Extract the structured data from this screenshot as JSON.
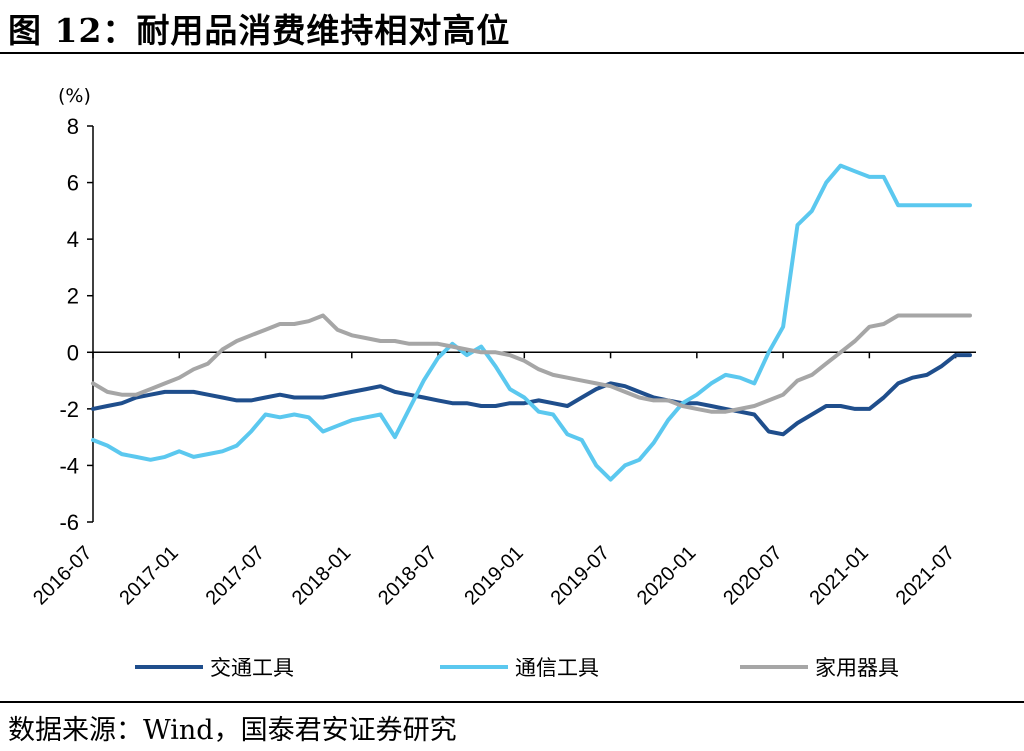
{
  "figure": {
    "title": "图 12：耐用品消费维持相对高位",
    "source": "数据来源：Wind，国泰君安证券研究"
  },
  "chart_data": {
    "type": "line",
    "title": "",
    "ylabel": "(%)",
    "xlabel": "",
    "ylim": [
      -6,
      8
    ],
    "y_ticks": [
      8,
      6,
      4,
      2,
      0,
      -2,
      -4,
      -6
    ],
    "x_tick_labels": [
      "2016-07",
      "2017-01",
      "2017-07",
      "2018-01",
      "2018-07",
      "2019-01",
      "2019-07",
      "2020-01",
      "2020-07",
      "2021-01",
      "2021-07"
    ],
    "x": [
      "2016-07",
      "2016-08",
      "2016-09",
      "2016-10",
      "2016-11",
      "2016-12",
      "2017-01",
      "2017-02",
      "2017-03",
      "2017-04",
      "2017-05",
      "2017-06",
      "2017-07",
      "2017-08",
      "2017-09",
      "2017-10",
      "2017-11",
      "2017-12",
      "2018-01",
      "2018-02",
      "2018-03",
      "2018-04",
      "2018-05",
      "2018-06",
      "2018-07",
      "2018-08",
      "2018-09",
      "2018-10",
      "2018-11",
      "2018-12",
      "2019-01",
      "2019-02",
      "2019-03",
      "2019-04",
      "2019-05",
      "2019-06",
      "2019-07",
      "2019-08",
      "2019-09",
      "2019-10",
      "2019-11",
      "2019-12",
      "2020-01",
      "2020-02",
      "2020-03",
      "2020-04",
      "2020-05",
      "2020-06",
      "2020-07",
      "2020-08",
      "2020-09",
      "2020-10",
      "2020-11",
      "2020-12",
      "2021-01",
      "2021-02",
      "2021-03",
      "2021-04",
      "2021-05",
      "2021-06",
      "2021-07",
      "2021-08"
    ],
    "legend_position": "bottom",
    "series": [
      {
        "name": "交通工具",
        "color": "#1f4e8c",
        "values": [
          -2.0,
          -1.9,
          -1.8,
          -1.6,
          -1.5,
          -1.4,
          -1.4,
          -1.4,
          -1.5,
          -1.6,
          -1.7,
          -1.7,
          -1.6,
          -1.5,
          -1.6,
          -1.6,
          -1.6,
          -1.5,
          -1.4,
          -1.3,
          -1.2,
          -1.4,
          -1.5,
          -1.6,
          -1.7,
          -1.8,
          -1.8,
          -1.9,
          -1.9,
          -1.8,
          -1.8,
          -1.7,
          -1.8,
          -1.9,
          -1.6,
          -1.3,
          -1.1,
          -1.2,
          -1.4,
          -1.6,
          -1.7,
          -1.8,
          -1.8,
          -1.9,
          -2.0,
          -2.1,
          -2.2,
          -2.8,
          -2.9,
          -2.5,
          -2.2,
          -1.9,
          -1.9,
          -2.0,
          -2.0,
          -1.6,
          -1.1,
          -0.9,
          -0.8,
          -0.5,
          -0.1,
          -0.1
        ]
      },
      {
        "name": "通信工具",
        "color": "#5bc8ef",
        "values": [
          -3.1,
          -3.3,
          -3.6,
          -3.7,
          -3.8,
          -3.7,
          -3.5,
          -3.7,
          -3.6,
          -3.5,
          -3.3,
          -2.8,
          -2.2,
          -2.3,
          -2.2,
          -2.3,
          -2.8,
          -2.6,
          -2.4,
          -2.3,
          -2.2,
          -3.0,
          -2.0,
          -1.0,
          -0.2,
          0.3,
          -0.1,
          0.2,
          -0.5,
          -1.3,
          -1.6,
          -2.1,
          -2.2,
          -2.9,
          -3.1,
          -4.0,
          -4.5,
          -4.0,
          -3.8,
          -3.2,
          -2.4,
          -1.8,
          -1.5,
          -1.1,
          -0.8,
          -0.9,
          -1.1,
          0.0,
          0.9,
          4.5,
          5.0,
          6.0,
          6.6,
          6.4,
          6.2,
          6.2,
          5.2,
          5.2,
          5.2,
          5.2,
          5.2,
          5.2
        ]
      },
      {
        "name": "家用器具",
        "color": "#a6a6a6",
        "values": [
          -1.1,
          -1.4,
          -1.5,
          -1.5,
          -1.3,
          -1.1,
          -0.9,
          -0.6,
          -0.4,
          0.1,
          0.4,
          0.6,
          0.8,
          1.0,
          1.0,
          1.1,
          1.3,
          0.8,
          0.6,
          0.5,
          0.4,
          0.4,
          0.3,
          0.3,
          0.3,
          0.2,
          0.1,
          0.0,
          0.0,
          -0.1,
          -0.3,
          -0.6,
          -0.8,
          -0.9,
          -1.0,
          -1.1,
          -1.2,
          -1.4,
          -1.6,
          -1.7,
          -1.7,
          -1.9,
          -2.0,
          -2.1,
          -2.1,
          -2.0,
          -1.9,
          -1.7,
          -1.5,
          -1.0,
          -0.8,
          -0.4,
          0.0,
          0.4,
          0.9,
          1.0,
          1.3,
          1.3,
          1.3,
          1.3,
          1.3,
          1.3
        ]
      }
    ]
  }
}
